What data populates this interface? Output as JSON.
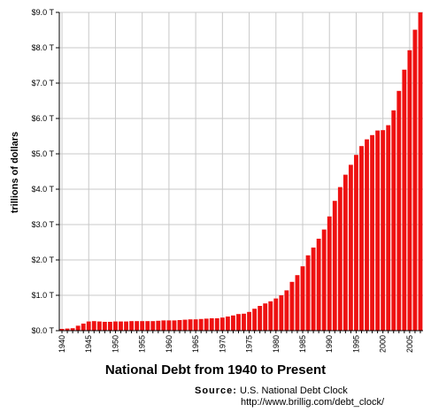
{
  "chart_data": {
    "type": "bar",
    "title": "National Debt from 1940 to Present",
    "ylabel": "trillions of dollars",
    "xlabel": "",
    "ylim": [
      0,
      9.0
    ],
    "yticks": [
      "$0.0 T",
      "$1.0 T",
      "$2.0 T",
      "$3.0 T",
      "$4.0 T",
      "$5.0 T",
      "$6.0 T",
      "$7.0 T",
      "$8.0 T",
      "$9.0 T"
    ],
    "xticks": [
      "1940",
      "1945",
      "1950",
      "1955",
      "1960",
      "1965",
      "1970",
      "1975",
      "1980",
      "1985",
      "1990",
      "1995",
      "2000",
      "2005"
    ],
    "grid": true,
    "bar_color": "#ee1111",
    "categories": [
      1940,
      1941,
      1942,
      1943,
      1944,
      1945,
      1946,
      1947,
      1948,
      1949,
      1950,
      1951,
      1952,
      1953,
      1954,
      1955,
      1956,
      1957,
      1958,
      1959,
      1960,
      1961,
      1962,
      1963,
      1964,
      1965,
      1966,
      1967,
      1968,
      1969,
      1970,
      1971,
      1972,
      1973,
      1974,
      1975,
      1976,
      1977,
      1978,
      1979,
      1980,
      1981,
      1982,
      1983,
      1984,
      1985,
      1986,
      1987,
      1988,
      1989,
      1990,
      1991,
      1992,
      1993,
      1994,
      1995,
      1996,
      1997,
      1998,
      1999,
      2000,
      2001,
      2002,
      2003,
      2004,
      2005,
      2006,
      2007
    ],
    "values": [
      0.05,
      0.06,
      0.07,
      0.14,
      0.2,
      0.26,
      0.27,
      0.26,
      0.25,
      0.25,
      0.26,
      0.26,
      0.26,
      0.27,
      0.27,
      0.27,
      0.27,
      0.27,
      0.28,
      0.29,
      0.29,
      0.29,
      0.3,
      0.31,
      0.32,
      0.32,
      0.33,
      0.34,
      0.35,
      0.35,
      0.37,
      0.4,
      0.43,
      0.47,
      0.48,
      0.53,
      0.62,
      0.7,
      0.77,
      0.83,
      0.91,
      1.0,
      1.14,
      1.38,
      1.57,
      1.82,
      2.13,
      2.35,
      2.6,
      2.86,
      3.23,
      3.67,
      4.06,
      4.41,
      4.69,
      4.97,
      5.22,
      5.41,
      5.53,
      5.66,
      5.67,
      5.81,
      6.23,
      6.78,
      7.38,
      7.93,
      8.51,
      9.0
    ]
  },
  "source": {
    "label": "Source:",
    "name": "U.S. National Debt Clock",
    "url": "http://www.brillig.com/debt_clock/"
  }
}
